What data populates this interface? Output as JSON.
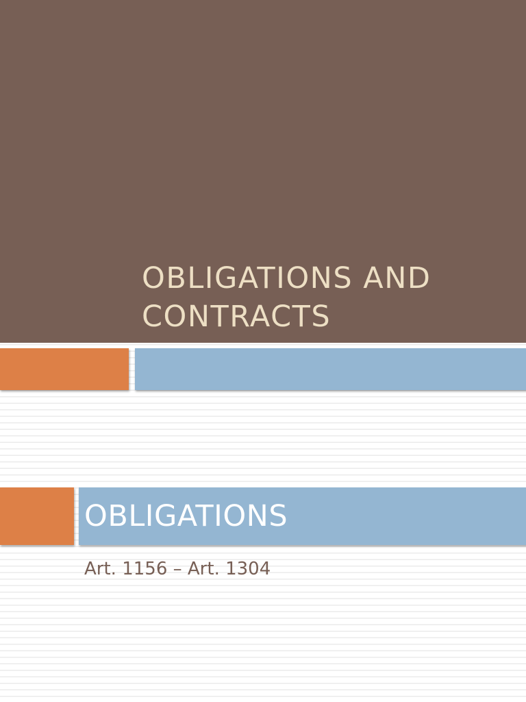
{
  "slides": [
    {
      "title": "OBLIGATIONS AND\nCONTRACTS"
    },
    {
      "title": "OBLIGATIONS",
      "subtitle": "Art. 1156 – Art. 1304"
    }
  ],
  "theme": {
    "header_brown": "#775f55",
    "title_cream": "#eddfc4",
    "accent_orange": "#dd8047",
    "accent_blue": "#94b6d2",
    "subtitle_brown": "#775f55"
  }
}
